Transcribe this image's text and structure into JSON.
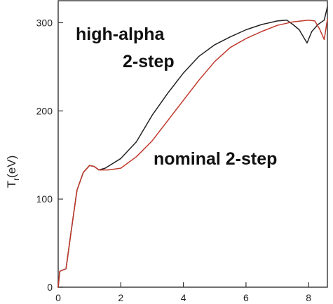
{
  "chart_data": {
    "type": "line",
    "title": "",
    "xlabel": "",
    "ylabel": {
      "main": "T",
      "sub": "r",
      "unit": "(eV)"
    },
    "xlim": [
      0,
      8.6
    ],
    "ylim": [
      0,
      325
    ],
    "x_ticks": [
      0,
      2,
      4,
      6,
      8
    ],
    "y_ticks": [
      0,
      100,
      200,
      300
    ],
    "grid": false,
    "legend": "none",
    "annotations": [
      {
        "text": "high-alpha",
        "series": "high-alpha 2-step"
      },
      {
        "text": "2-step",
        "series": "high-alpha 2-step"
      },
      {
        "text": "nominal 2-step",
        "series": "nominal 2-step"
      }
    ],
    "series": [
      {
        "name": "high-alpha 2-step",
        "color": "#222222",
        "points": [
          [
            0.0,
            0
          ],
          [
            0.05,
            18
          ],
          [
            0.25,
            21
          ],
          [
            0.4,
            60
          ],
          [
            0.6,
            110
          ],
          [
            0.8,
            130
          ],
          [
            1.0,
            138
          ],
          [
            1.15,
            137
          ],
          [
            1.3,
            133
          ],
          [
            1.5,
            135
          ],
          [
            2.0,
            146
          ],
          [
            2.5,
            165
          ],
          [
            3.0,
            195
          ],
          [
            3.5,
            220
          ],
          [
            4.0,
            243
          ],
          [
            4.5,
            262
          ],
          [
            5.0,
            275
          ],
          [
            5.5,
            284
          ],
          [
            6.0,
            292
          ],
          [
            6.5,
            298
          ],
          [
            7.0,
            302
          ],
          [
            7.3,
            303
          ],
          [
            7.5,
            298
          ],
          [
            7.7,
            292
          ],
          [
            7.85,
            283
          ],
          [
            7.95,
            277
          ],
          [
            8.1,
            290
          ],
          [
            8.3,
            298
          ],
          [
            8.5,
            303
          ],
          [
            8.6,
            318
          ]
        ]
      },
      {
        "name": "nominal 2-step",
        "color": "#c0392b",
        "points": [
          [
            0.0,
            0
          ],
          [
            0.05,
            18
          ],
          [
            0.25,
            21
          ],
          [
            0.4,
            60
          ],
          [
            0.6,
            110
          ],
          [
            0.8,
            130
          ],
          [
            1.0,
            138
          ],
          [
            1.15,
            137
          ],
          [
            1.3,
            133
          ],
          [
            1.6,
            133
          ],
          [
            2.0,
            135
          ],
          [
            2.5,
            148
          ],
          [
            3.0,
            166
          ],
          [
            3.5,
            189
          ],
          [
            4.0,
            212
          ],
          [
            4.5,
            235
          ],
          [
            5.0,
            256
          ],
          [
            5.5,
            272
          ],
          [
            6.0,
            282
          ],
          [
            6.5,
            290
          ],
          [
            7.0,
            297
          ],
          [
            7.5,
            301
          ],
          [
            8.0,
            303
          ],
          [
            8.2,
            302
          ],
          [
            8.35,
            293
          ],
          [
            8.5,
            281
          ],
          [
            8.6,
            304
          ]
        ]
      }
    ]
  }
}
